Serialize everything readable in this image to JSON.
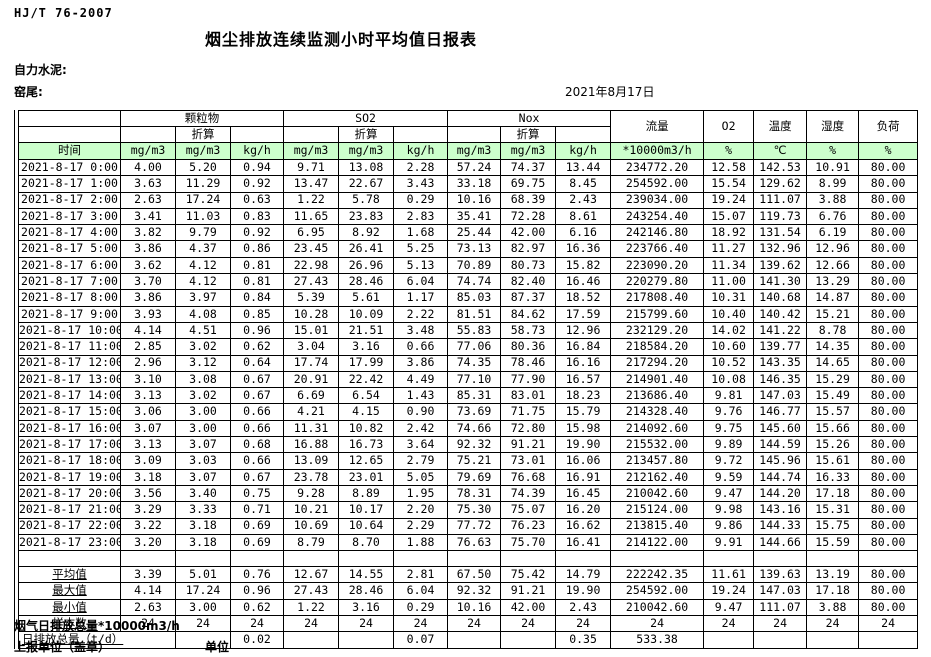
{
  "header": {
    "doc_code": "HJ/T 76-2007",
    "title": "烟尘排放连续监测小时平均值日报表",
    "company": "自力水泥:",
    "location": "窑尾:",
    "date": "2021年8月17日"
  },
  "table": {
    "header": {
      "groups": [
        "",
        "颗粒物",
        "SO2",
        "Nox",
        "流量",
        "O2",
        "温度",
        "湿度",
        "负荷"
      ],
      "conv": "折算",
      "units": [
        "时间",
        "mg/m3",
        "mg/m3",
        "kg/h",
        "mg/m3",
        "mg/m3",
        "kg/h",
        "mg/m3",
        "mg/m3",
        "kg/h",
        "*10000m3/h",
        "%",
        "℃",
        "%",
        "%"
      ]
    },
    "rows": [
      {
        "time": "2021-8-17 0:00",
        "values": [
          "4.00",
          "5.20",
          "0.94",
          "9.71",
          "13.08",
          "2.28",
          "57.24",
          "74.37",
          "13.44",
          "234772.20",
          "12.58",
          "142.53",
          "10.91",
          "80.00"
        ]
      },
      {
        "time": "2021-8-17 1:00",
        "values": [
          "3.63",
          "11.29",
          "0.92",
          "13.47",
          "22.67",
          "3.43",
          "33.18",
          "69.75",
          "8.45",
          "254592.00",
          "15.54",
          "129.62",
          "8.99",
          "80.00"
        ]
      },
      {
        "time": "2021-8-17 2:00",
        "values": [
          "2.63",
          "17.24",
          "0.63",
          "1.22",
          "5.78",
          "0.29",
          "10.16",
          "68.39",
          "2.43",
          "239034.00",
          "19.24",
          "111.07",
          "3.88",
          "80.00"
        ]
      },
      {
        "time": "2021-8-17 3:00",
        "values": [
          "3.41",
          "11.03",
          "0.83",
          "11.65",
          "23.83",
          "2.83",
          "35.41",
          "72.28",
          "8.61",
          "243254.40",
          "15.07",
          "119.73",
          "6.76",
          "80.00"
        ]
      },
      {
        "time": "2021-8-17 4:00",
        "values": [
          "3.82",
          "9.79",
          "0.92",
          "6.95",
          "8.92",
          "1.68",
          "25.44",
          "42.00",
          "6.16",
          "242146.80",
          "18.92",
          "131.54",
          "6.19",
          "80.00"
        ]
      },
      {
        "time": "2021-8-17 5:00",
        "values": [
          "3.86",
          "4.37",
          "0.86",
          "23.45",
          "26.41",
          "5.25",
          "73.13",
          "82.97",
          "16.36",
          "223766.40",
          "11.27",
          "132.96",
          "12.96",
          "80.00"
        ]
      },
      {
        "time": "2021-8-17 6:00",
        "values": [
          "3.62",
          "4.12",
          "0.81",
          "22.98",
          "26.96",
          "5.13",
          "70.89",
          "80.73",
          "15.82",
          "223090.20",
          "11.34",
          "139.62",
          "12.66",
          "80.00"
        ]
      },
      {
        "time": "2021-8-17 7:00",
        "values": [
          "3.70",
          "4.12",
          "0.81",
          "27.43",
          "28.46",
          "6.04",
          "74.74",
          "82.40",
          "16.46",
          "220279.80",
          "11.00",
          "141.30",
          "13.29",
          "80.00"
        ]
      },
      {
        "time": "2021-8-17 8:00",
        "values": [
          "3.86",
          "3.97",
          "0.84",
          "5.39",
          "5.61",
          "1.17",
          "85.03",
          "87.37",
          "18.52",
          "217808.40",
          "10.31",
          "140.68",
          "14.87",
          "80.00"
        ]
      },
      {
        "time": "2021-8-17 9:00",
        "values": [
          "3.93",
          "4.08",
          "0.85",
          "10.28",
          "10.09",
          "2.22",
          "81.51",
          "84.62",
          "17.59",
          "215799.60",
          "10.40",
          "140.42",
          "15.21",
          "80.00"
        ]
      },
      {
        "time": "2021-8-17 10:00",
        "values": [
          "4.14",
          "4.51",
          "0.96",
          "15.01",
          "21.51",
          "3.48",
          "55.83",
          "58.73",
          "12.96",
          "232129.20",
          "14.02",
          "141.22",
          "8.78",
          "80.00"
        ]
      },
      {
        "time": "2021-8-17 11:00",
        "values": [
          "2.85",
          "3.02",
          "0.62",
          "3.04",
          "3.16",
          "0.66",
          "77.06",
          "80.36",
          "16.84",
          "218584.20",
          "10.60",
          "139.77",
          "14.35",
          "80.00"
        ]
      },
      {
        "time": "2021-8-17 12:00",
        "values": [
          "2.96",
          "3.12",
          "0.64",
          "17.74",
          "17.99",
          "3.86",
          "74.35",
          "78.46",
          "16.16",
          "217294.20",
          "10.52",
          "143.35",
          "14.65",
          "80.00"
        ]
      },
      {
        "time": "2021-8-17 13:00",
        "values": [
          "3.10",
          "3.08",
          "0.67",
          "20.91",
          "22.42",
          "4.49",
          "77.10",
          "77.90",
          "16.57",
          "214901.40",
          "10.08",
          "146.35",
          "15.29",
          "80.00"
        ]
      },
      {
        "time": "2021-8-17 14:00",
        "values": [
          "3.13",
          "3.02",
          "0.67",
          "6.69",
          "6.54",
          "1.43",
          "85.31",
          "83.01",
          "18.23",
          "213686.40",
          "9.81",
          "147.03",
          "15.49",
          "80.00"
        ]
      },
      {
        "time": "2021-8-17 15:00",
        "values": [
          "3.06",
          "3.00",
          "0.66",
          "4.21",
          "4.15",
          "0.90",
          "73.69",
          "71.75",
          "15.79",
          "214328.40",
          "9.76",
          "146.77",
          "15.57",
          "80.00"
        ]
      },
      {
        "time": "2021-8-17 16:00",
        "values": [
          "3.07",
          "3.00",
          "0.66",
          "11.31",
          "10.82",
          "2.42",
          "74.66",
          "72.80",
          "15.98",
          "214092.60",
          "9.75",
          "145.60",
          "15.66",
          "80.00"
        ]
      },
      {
        "time": "2021-8-17 17:00",
        "values": [
          "3.13",
          "3.07",
          "0.68",
          "16.88",
          "16.73",
          "3.64",
          "92.32",
          "91.21",
          "19.90",
          "215532.00",
          "9.89",
          "144.59",
          "15.26",
          "80.00"
        ]
      },
      {
        "time": "2021-8-17 18:00",
        "values": [
          "3.09",
          "3.03",
          "0.66",
          "13.09",
          "12.65",
          "2.79",
          "75.21",
          "73.01",
          "16.06",
          "213457.80",
          "9.72",
          "145.96",
          "15.61",
          "80.00"
        ]
      },
      {
        "time": "2021-8-17 19:00",
        "values": [
          "3.18",
          "3.07",
          "0.67",
          "23.78",
          "23.01",
          "5.05",
          "79.69",
          "76.68",
          "16.91",
          "212162.40",
          "9.59",
          "144.74",
          "16.33",
          "80.00"
        ]
      },
      {
        "time": "2021-8-17 20:00",
        "values": [
          "3.56",
          "3.40",
          "0.75",
          "9.28",
          "8.89",
          "1.95",
          "78.31",
          "74.39",
          "16.45",
          "210042.60",
          "9.47",
          "144.20",
          "17.18",
          "80.00"
        ]
      },
      {
        "time": "2021-8-17 21:00",
        "values": [
          "3.29",
          "3.33",
          "0.71",
          "10.21",
          "10.17",
          "2.20",
          "75.30",
          "75.07",
          "16.20",
          "215124.00",
          "9.98",
          "143.16",
          "15.31",
          "80.00"
        ]
      },
      {
        "time": "2021-8-17 22:00",
        "values": [
          "3.22",
          "3.18",
          "0.69",
          "10.69",
          "10.64",
          "2.29",
          "77.72",
          "76.23",
          "16.62",
          "213815.40",
          "9.86",
          "144.33",
          "15.75",
          "80.00"
        ]
      },
      {
        "time": "2021-8-17 23:00",
        "values": [
          "3.20",
          "3.18",
          "0.69",
          "8.79",
          "8.70",
          "1.88",
          "76.63",
          "75.70",
          "16.41",
          "214122.00",
          "9.91",
          "144.66",
          "15.59",
          "80.00"
        ]
      }
    ],
    "summary": [
      {
        "label": "平均值",
        "values": [
          "3.39",
          "5.01",
          "0.76",
          "12.67",
          "14.55",
          "2.81",
          "67.50",
          "75.42",
          "14.79",
          "222242.35",
          "11.61",
          "139.63",
          "13.19",
          "80.00"
        ]
      },
      {
        "label": "最大值",
        "values": [
          "4.14",
          "17.24",
          "0.96",
          "27.43",
          "28.46",
          "6.04",
          "92.32",
          "91.21",
          "19.90",
          "254592.00",
          "19.24",
          "147.03",
          "17.18",
          "80.00"
        ]
      },
      {
        "label": "最小值",
        "values": [
          "2.63",
          "3.00",
          "0.62",
          "1.22",
          "3.16",
          "0.29",
          "10.16",
          "42.00",
          "2.43",
          "210042.60",
          "9.47",
          "111.07",
          "3.88",
          "80.00"
        ]
      },
      {
        "label": "样本数",
        "values": [
          "24",
          "24",
          "24",
          "24",
          "24",
          "24",
          "24",
          "24",
          "24",
          "24",
          "24",
          "24",
          "24",
          "24"
        ]
      }
    ],
    "total_row": {
      "label": "日排放总量（t/d）",
      "values": [
        "",
        "0.02",
        "",
        "",
        "0.07",
        "",
        "",
        "0.35",
        "533.38",
        "",
        "",
        "",
        ""
      ]
    }
  },
  "footer": {
    "note": "烟气日排放总量*10000m3/h",
    "report_unit": "上报单位（盖章）",
    "unit": "单位"
  },
  "colors": {
    "header_green": "#ccffcc",
    "border": "#000000",
    "background": "#ffffff"
  }
}
